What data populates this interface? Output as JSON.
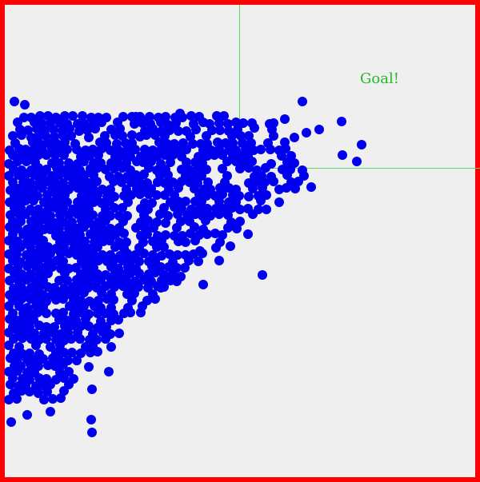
{
  "game": {
    "goal_label": "Goal!",
    "colors": {
      "border": "#ff0000",
      "background": "#efefef",
      "ball": "#0000ee",
      "goal_line": "#5fd35f",
      "goal_text": "#22bb22"
    }
  }
}
